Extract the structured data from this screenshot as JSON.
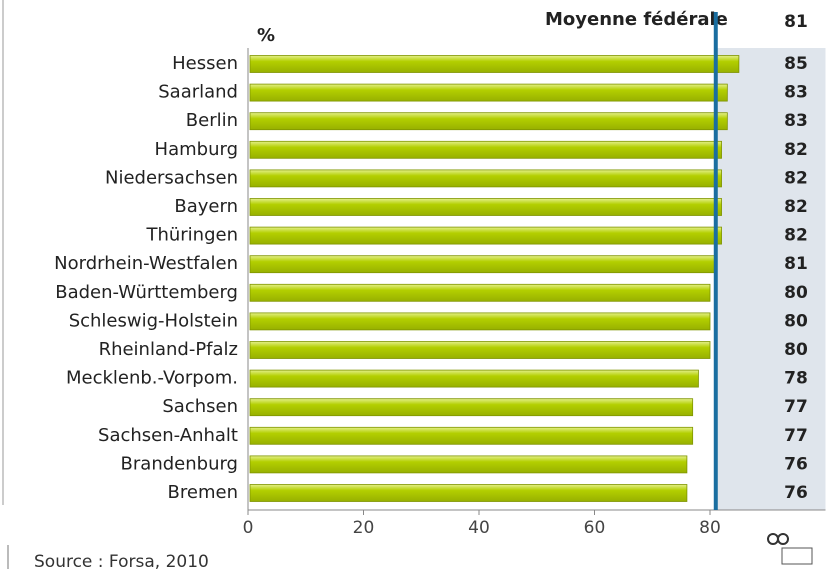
{
  "chart_data": {
    "type": "hbar",
    "unit": "%",
    "categories": [
      "Hessen",
      "Saarland",
      "Berlin",
      "Hamburg",
      "Niedersachsen",
      "Bayern",
      "Thüringen",
      "Nordrhein-Westfalen",
      "Baden-Württemberg",
      "Schleswig-Holstein",
      "Rheinland-Pfalz",
      "Mecklenb.-Vorpom.",
      "Sachsen",
      "Sachsen-Anhalt",
      "Brandenburg",
      "Bremen"
    ],
    "values": [
      85,
      83,
      83,
      82,
      82,
      82,
      82,
      81,
      80,
      80,
      80,
      78,
      77,
      77,
      76,
      76
    ],
    "color": "#b3cf00",
    "xlim": [
      0,
      100
    ],
    "xticks": [
      0,
      20,
      40,
      60,
      80
    ],
    "reference": {
      "label": "Moyenne fédérale",
      "value": 81,
      "color": "#1a6ea0"
    },
    "source": "Source : Forsa, 2010"
  }
}
